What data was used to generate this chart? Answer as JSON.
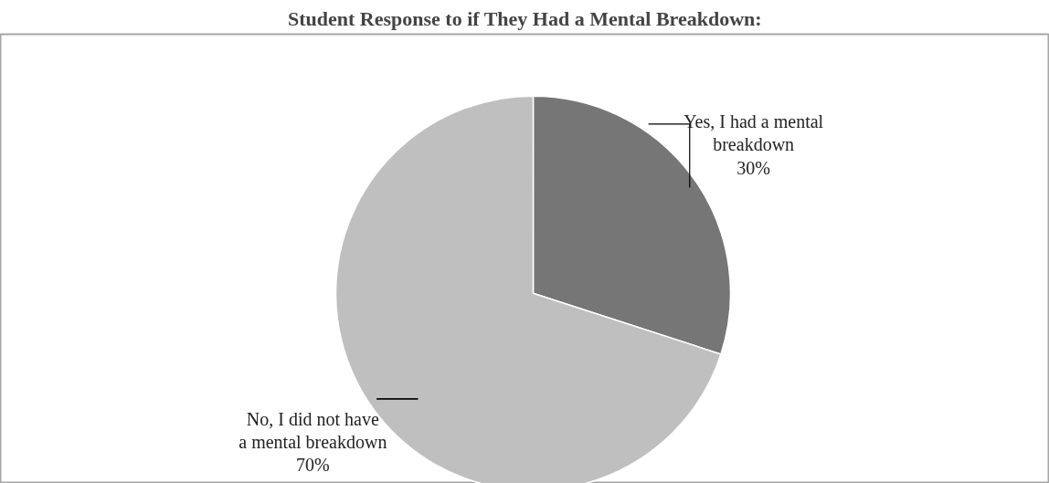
{
  "chart_data": {
    "type": "pie",
    "title": "Student Response to if They Had a Mental Breakdown:",
    "categories": [
      "Yes, I had a mental breakdown",
      "No, I did not have a mental breakdown"
    ],
    "values": [
      30,
      70
    ],
    "colors": [
      "#767676",
      "#bfbfbf"
    ],
    "value_labels": [
      "30%",
      "70%"
    ],
    "legend": false
  }
}
